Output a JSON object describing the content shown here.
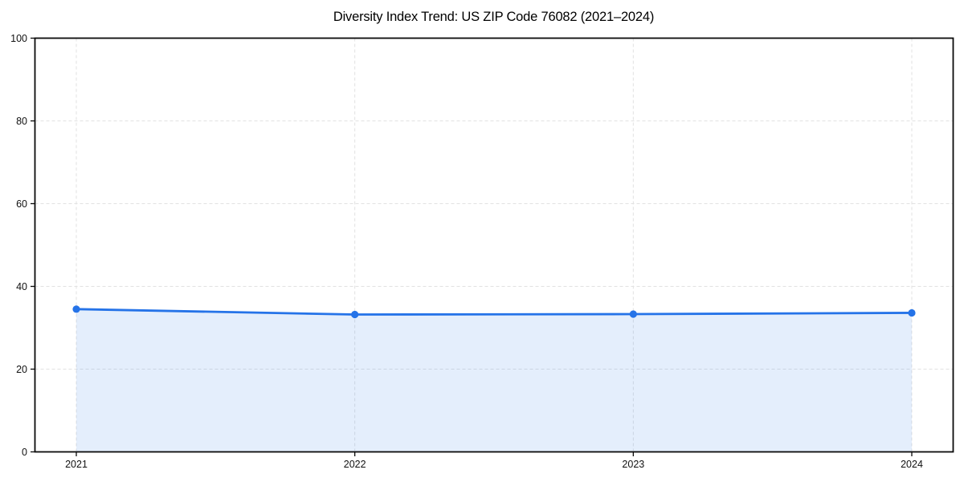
{
  "chart_data": {
    "type": "line",
    "title": "Diversity Index Trend: US ZIP Code 76082 (2021–2024)",
    "categories": [
      "2021",
      "2022",
      "2023",
      "2024"
    ],
    "series": [
      {
        "name": "Diversity Index",
        "values": [
          34.5,
          33.2,
          33.3,
          33.6
        ]
      }
    ],
    "xlabel": "",
    "ylabel": "",
    "ylim": [
      0,
      100
    ],
    "yticks": [
      0,
      20,
      40,
      60,
      80,
      100
    ],
    "grid": true,
    "grid_style": "dashed",
    "legend": "none",
    "area_fill": true,
    "colors": {
      "line": "#2573e8",
      "marker": "#2573e8",
      "fill": "#2573e8",
      "fill_opacity": 0.12,
      "grid": "#e2e2e2",
      "axis": "#0a0a0a",
      "text": "#111111",
      "background": "#ffffff"
    }
  }
}
